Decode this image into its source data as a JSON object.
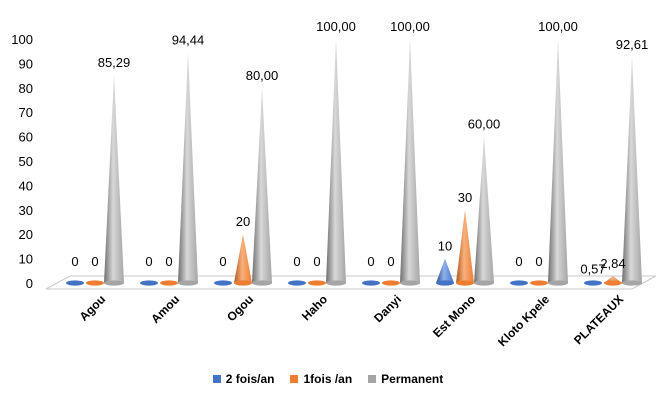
{
  "chart_data": {
    "type": "bar",
    "categories": [
      "Agou",
      "Amou",
      "Ogou",
      "Haho",
      "Danyi",
      "Est Mono",
      "Kloto Kpele",
      "PLATEAUX"
    ],
    "series": [
      {
        "name": "2 fois/an",
        "color": "#4472C4",
        "values": [
          0,
          0,
          0,
          0,
          0,
          10,
          0,
          0.57
        ],
        "labels": [
          "0",
          "0",
          "0",
          "0",
          "0",
          "10",
          "0",
          "0,57"
        ]
      },
      {
        "name": "1fois /an",
        "color": "#ED7D31",
        "values": [
          0,
          0,
          20,
          0,
          0,
          30,
          0,
          2.84
        ],
        "labels": [
          "0",
          "0",
          "20",
          "0",
          "0",
          "30",
          "0",
          "2,84"
        ]
      },
      {
        "name": "Permanent",
        "color": "#A5A5A5",
        "values": [
          85.29,
          94.44,
          80.0,
          100.0,
          100.0,
          60.0,
          100.0,
          92.61
        ],
        "labels": [
          "85,29",
          "94,44",
          "80,00",
          "100,00",
          "100,00",
          "60,00",
          "100,00",
          "92,61"
        ]
      }
    ],
    "yticks": [
      "0",
      "10",
      "20",
      "30",
      "40",
      "50",
      "60",
      "70",
      "80",
      "90",
      "100"
    ],
    "ylim": [
      0,
      100
    ],
    "mark_shape": "cone",
    "grid": false,
    "legend_position": "bottom"
  }
}
